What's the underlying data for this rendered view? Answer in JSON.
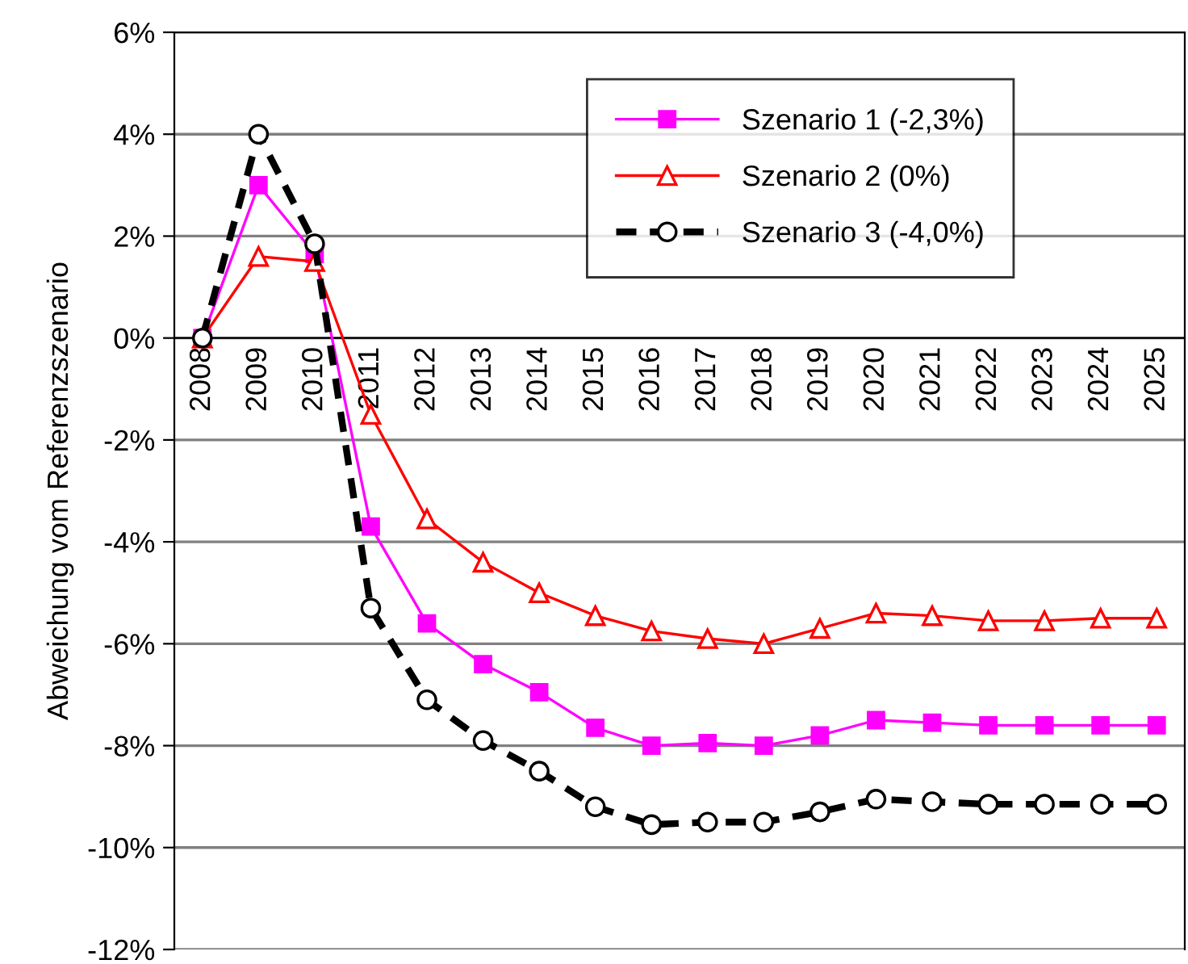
{
  "chart_data": {
    "type": "line",
    "ylabel": "Abweichung vom Referenzszenario",
    "categories": [
      "2008",
      "2009",
      "2010",
      "2011",
      "2012",
      "2013",
      "2014",
      "2015",
      "2016",
      "2017",
      "2018",
      "2019",
      "2020",
      "2021",
      "2022",
      "2023",
      "2024",
      "2025"
    ],
    "series": [
      {
        "name": "Szenario 1 (-2,3%)",
        "color": "#ff00ff",
        "marker": "square",
        "line_style": "solid",
        "values": [
          0,
          3.0,
          1.65,
          -3.7,
          -5.6,
          -6.4,
          -6.95,
          -7.65,
          -8.0,
          -7.95,
          -8.0,
          -7.8,
          -7.5,
          -7.55,
          -7.6,
          -7.6,
          -7.6,
          -7.6
        ]
      },
      {
        "name": "Szenario 2 (0%)",
        "color": "#ff0000",
        "marker": "triangle",
        "line_style": "solid",
        "values": [
          0,
          1.6,
          1.5,
          -1.5,
          -3.55,
          -4.4,
          -5.0,
          -5.45,
          -5.75,
          -5.9,
          -6.0,
          -5.7,
          -5.4,
          -5.45,
          -5.55,
          -5.55,
          -5.5,
          -5.5
        ]
      },
      {
        "name": "Szenario 3 (-4,0%)",
        "color": "#000000",
        "marker": "circle",
        "line_style": "dashed",
        "values": [
          0,
          4.0,
          1.85,
          -5.3,
          -7.1,
          -7.9,
          -8.5,
          -9.2,
          -9.55,
          -9.5,
          -9.5,
          -9.3,
          -9.05,
          -9.1,
          -9.15,
          -9.15,
          -9.15,
          -9.15
        ]
      }
    ],
    "ylim": [
      -12,
      6
    ],
    "yticks": [
      {
        "value": -12,
        "label": "-12%"
      },
      {
        "value": -10,
        "label": "-10%"
      },
      {
        "value": -8,
        "label": "-8%"
      },
      {
        "value": -6,
        "label": "-6%"
      },
      {
        "value": -4,
        "label": "-4%"
      },
      {
        "value": -2,
        "label": "-2%"
      },
      {
        "value": 0,
        "label": "0%"
      },
      {
        "value": 2,
        "label": "2%"
      },
      {
        "value": 4,
        "label": "4%"
      },
      {
        "value": 6,
        "label": "6%"
      }
    ],
    "grid": "y",
    "legend": "top right"
  }
}
